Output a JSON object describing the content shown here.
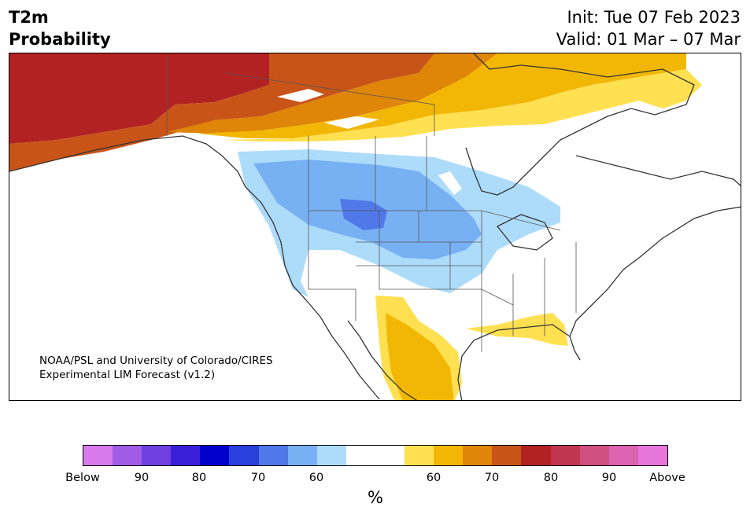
{
  "header": {
    "variable": "T2m",
    "subtitle": "Probability",
    "init": "Init: Tue 07 Feb 2023",
    "valid": "Valid: 01 Mar – 07 Mar"
  },
  "credit": {
    "line1": "NOAA/PSL and University of Colorado/CIRES",
    "line2": "Experimental LIM Forecast (v1.2)"
  },
  "colorbar": {
    "unit": "%",
    "colors": [
      "#d97aea",
      "#a05ce5",
      "#6f3fe0",
      "#3b1fd8",
      "#0000cc",
      "#2840dc",
      "#5078e8",
      "#78b0f4",
      "#addcfa",
      "#ffffff",
      "#ffffff",
      "#ffe050",
      "#f2b705",
      "#df8508",
      "#c85418",
      "#b22222",
      "#c03650",
      "#cf4f80",
      "#dc62b2",
      "#e676d9"
    ],
    "ticks": [
      "Below",
      "90",
      "80",
      "70",
      "60",
      "60",
      "70",
      "80",
      "90",
      "Above"
    ]
  },
  "map": {
    "region": "North America",
    "colors": {
      "above_80": "#b22222",
      "above_70": "#c85418",
      "above_65": "#df8508",
      "above_60": "#f2b705",
      "above_55": "#ffe050",
      "below_55": "#addcfa",
      "below_60": "#78b0f4",
      "below_65": "#5078e8",
      "coast": "#333333"
    }
  }
}
